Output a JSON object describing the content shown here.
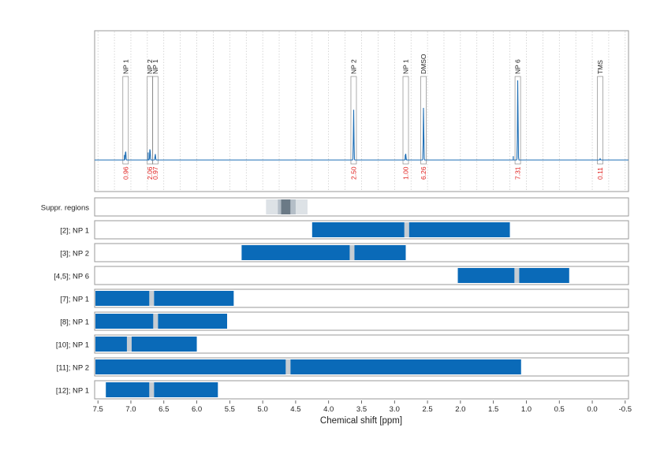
{
  "colors": {
    "signal": "#1f6fb5",
    "bar": "#0a6ab8",
    "integral_text": "#e0201e",
    "frame": "#9a9a9a",
    "grid": "#bdbdbd",
    "gap": "#c6ccd2",
    "suppr_light": "#dde2e6",
    "suppr_mid": "#b4bec7",
    "suppr_dark": "#6b7a86"
  },
  "chart_data": {
    "type": "spectrum_with_region_bars",
    "xlabel": "Chemical shift [ppm]",
    "x_reversed": true,
    "xlim": [
      7.55,
      -0.55
    ],
    "ticks": [
      7.5,
      7.0,
      6.5,
      6.0,
      5.5,
      5.0,
      4.5,
      4.0,
      3.5,
      3.0,
      2.5,
      2.0,
      1.5,
      1.0,
      0.5,
      0.0,
      -0.5
    ],
    "tick_labels": [
      "7.5",
      "7.0",
      "6.5",
      "6.0",
      "5.5",
      "5.0",
      "4.5",
      "4.0",
      "3.5",
      "3.0",
      "2.5",
      "2.0",
      "1.5",
      "1.0",
      "0.5",
      "0.0",
      "-0.5"
    ],
    "spectrum": {
      "grid": "dotted vertical",
      "peaks": [
        {
          "ppm": 7.08,
          "label": "NP 1",
          "integral": "0.96",
          "height": 0.08
        },
        {
          "ppm": 6.71,
          "label": "NP 2",
          "integral": "2.06",
          "height": 0.1
        },
        {
          "ppm": 6.63,
          "label": "NP 1",
          "integral": "0.97",
          "height": 0.05
        },
        {
          "ppm": 3.62,
          "label": "NP 2",
          "integral": "2.50",
          "height": 0.4
        },
        {
          "ppm": 2.83,
          "label": "NP 1",
          "integral": "1.00",
          "height": 0.05
        },
        {
          "ppm": 2.56,
          "label": "DMSO",
          "integral": "6.26",
          "height": 0.42
        },
        {
          "ppm": 1.13,
          "label": "NP 6",
          "integral": "7.31",
          "height": 0.65
        },
        {
          "ppm": -0.12,
          "label": "TMS",
          "integral": "0.11",
          "height": 0.01
        }
      ]
    },
    "rows": [
      {
        "label": "Suppr. regions",
        "type": "suppression",
        "light": [
          4.95,
          4.32
        ],
        "mid": [
          4.77,
          4.5
        ],
        "dark": [
          4.72,
          4.58
        ]
      },
      {
        "label": "[2]; NP 1",
        "type": "bar",
        "segments": [
          [
            4.25,
            2.85
          ],
          [
            2.78,
            1.25
          ]
        ],
        "gap": [
          2.85,
          2.78
        ]
      },
      {
        "label": "[3]; NP 2",
        "type": "bar",
        "segments": [
          [
            5.32,
            3.68
          ],
          [
            3.61,
            2.83
          ]
        ],
        "gap": [
          3.68,
          3.61
        ]
      },
      {
        "label": "[4,5]; NP 6",
        "type": "bar",
        "segments": [
          [
            2.04,
            1.18
          ],
          [
            1.11,
            0.35
          ]
        ],
        "gap": [
          1.18,
          1.11
        ]
      },
      {
        "label": "[7]; NP 1",
        "type": "bar",
        "segments": [
          [
            7.55,
            6.72
          ],
          [
            6.65,
            5.44
          ]
        ],
        "gap": [
          6.72,
          6.65
        ]
      },
      {
        "label": "[8]; NP 1",
        "type": "bar",
        "segments": [
          [
            7.55,
            6.66
          ],
          [
            6.59,
            5.54
          ]
        ],
        "gap": [
          6.66,
          6.59
        ]
      },
      {
        "label": "[10]; NP 1",
        "type": "bar",
        "segments": [
          [
            7.55,
            7.06
          ],
          [
            6.99,
            6.0
          ]
        ],
        "gap": [
          7.06,
          6.99
        ]
      },
      {
        "label": "[11]; NP 2",
        "type": "bar",
        "segments": [
          [
            7.55,
            4.65
          ],
          [
            4.58,
            1.08
          ]
        ],
        "gap": [
          4.65,
          4.58
        ]
      },
      {
        "label": "[12]; NP 1",
        "type": "bar",
        "segments": [
          [
            7.38,
            6.72
          ],
          [
            6.65,
            5.68
          ]
        ],
        "gap": [
          6.72,
          6.65
        ]
      }
    ]
  }
}
